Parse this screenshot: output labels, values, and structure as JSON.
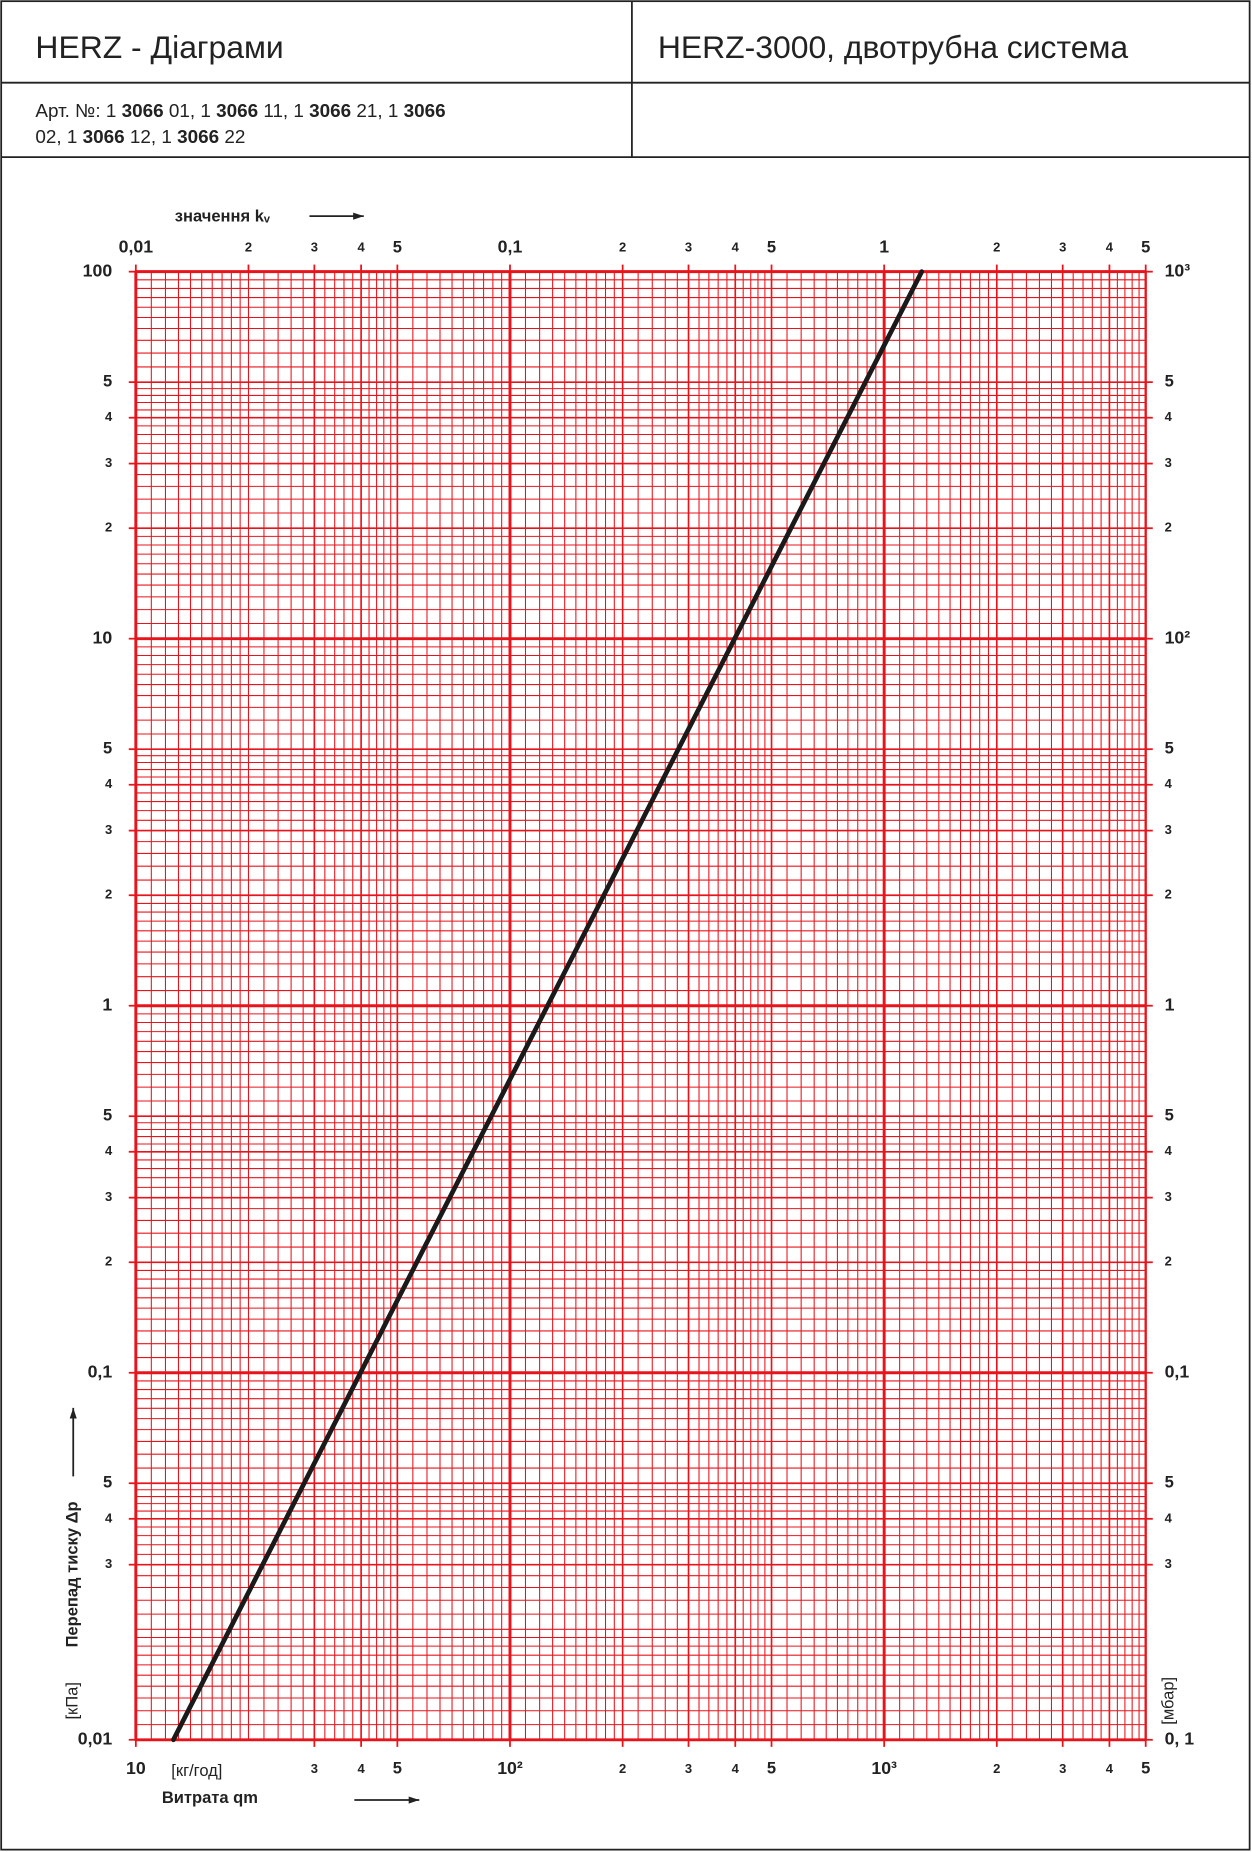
{
  "header": {
    "title": "HERZ - Діаграми",
    "product": "HERZ-3000, двотрубна система",
    "article_parts": [
      "Арт. №: 1 ",
      "3066",
      " 01, 1 ",
      "3066",
      " 11, 1 ",
      "3066",
      " 21, 1 ",
      "3066",
      "02, 1 ",
      "3066",
      " 12, 1 ",
      "3066",
      " 22"
    ]
  },
  "chart_data": {
    "type": "line",
    "top_label": "значення kᵥ",
    "x_label": "Витрата qm",
    "x_unit": "[кг/год]",
    "y_label": "Перепад тиску Δp",
    "y_unit": "[кПа]",
    "y2_unit": "[мбар]",
    "x": [
      12.6,
      1260
    ],
    "values": [
      0.01,
      100
    ],
    "color": "#1a1a1a",
    "grid_color": "#e8141b",
    "xscale": "log",
    "yscale": "log",
    "grid": true,
    "xlim": [
      10,
      5000
    ],
    "xticks": [
      10,
      {
        "value": 30,
        "label": "3"
      },
      {
        "value": 40,
        "label": "4"
      },
      {
        "value": 50,
        "label": "5"
      },
      {
        "value": 100,
        "label": "10²"
      },
      {
        "value": 200,
        "label": "2"
      },
      {
        "value": 300,
        "label": "3"
      },
      {
        "value": 400,
        "label": "4"
      },
      {
        "value": 500,
        "label": "5"
      },
      {
        "value": 1000,
        "label": "10³"
      },
      {
        "value": 2000,
        "label": "2"
      },
      {
        "value": 3000,
        "label": "3"
      },
      {
        "value": 4000,
        "label": "4"
      },
      {
        "value": 5000,
        "label": "5"
      }
    ],
    "x2lim": [
      0.01,
      5
    ],
    "x2ticks": [
      {
        "value": 0.01,
        "label": "0,01"
      },
      {
        "value": 0.02,
        "label": "2"
      },
      {
        "value": 0.03,
        "label": "3"
      },
      {
        "value": 0.04,
        "label": "4"
      },
      {
        "value": 0.05,
        "label": "5"
      },
      {
        "value": 0.1,
        "label": "0,1"
      },
      {
        "value": 0.2,
        "label": "2"
      },
      {
        "value": 0.3,
        "label": "3"
      },
      {
        "value": 0.4,
        "label": "4"
      },
      {
        "value": 0.5,
        "label": "5"
      },
      1,
      2,
      3,
      4,
      5
    ],
    "ylim": [
      0.01,
      100
    ],
    "yticks": [
      100,
      {
        "value": 50,
        "label": "5"
      },
      {
        "value": 40,
        "label": "4"
      },
      {
        "value": 30,
        "label": "3"
      },
      {
        "value": 20,
        "label": "2"
      },
      10,
      5,
      4,
      3,
      2,
      1,
      {
        "value": 0.5,
        "label": "5"
      },
      {
        "value": 0.4,
        "label": "4"
      },
      {
        "value": 0.3,
        "label": "3"
      },
      {
        "value": 0.2,
        "label": "2"
      },
      {
        "value": 0.1,
        "label": "0,1"
      },
      {
        "value": 0.05,
        "label": "5"
      },
      {
        "value": 0.04,
        "label": "4"
      },
      {
        "value": 0.03,
        "label": "3"
      },
      {
        "value": 0.01,
        "label": "0,01"
      }
    ],
    "y2lim": [
      0.1,
      1000
    ],
    "y2ticks": [
      {
        "value": 1000,
        "label": "10³"
      },
      {
        "value": 500,
        "label": "5"
      },
      {
        "value": 400,
        "label": "4"
      },
      {
        "value": 300,
        "label": "3"
      },
      {
        "value": 200,
        "label": "2"
      },
      {
        "value": 100,
        "label": "10²"
      },
      {
        "value": 50,
        "label": "5"
      },
      {
        "value": 40,
        "label": "4"
      },
      {
        "value": 30,
        "label": "3"
      },
      {
        "value": 20,
        "label": "2"
      },
      {
        "value": 10,
        "label": "1"
      },
      5,
      4,
      3,
      2,
      {
        "value": 1,
        "label": "0,1"
      },
      {
        "value": 0.5,
        "label": "5"
      },
      {
        "value": 0.4,
        "label": "4"
      },
      {
        "value": 0.3,
        "label": "3"
      },
      {
        "value": 0.1,
        "label": "0, 1"
      }
    ]
  }
}
